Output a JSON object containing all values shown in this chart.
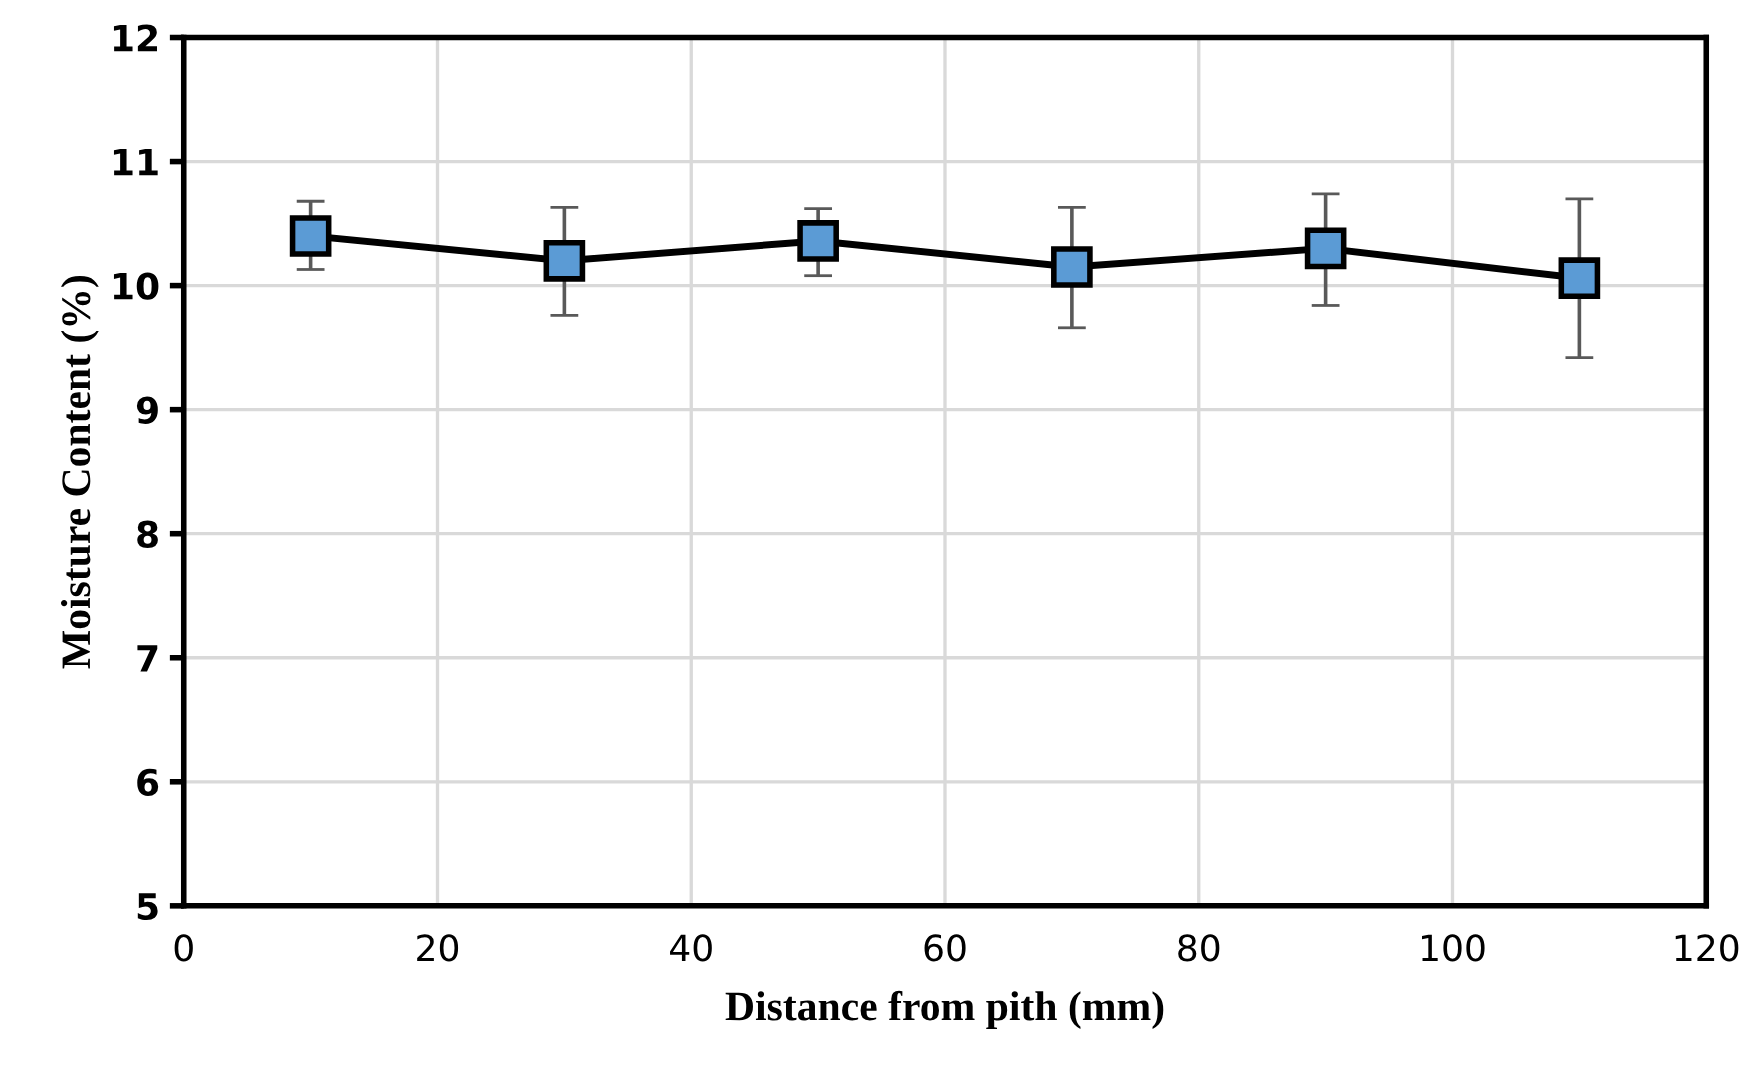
{
  "chart_data": {
    "type": "line",
    "xlabel": "Distance from pith (mm)",
    "ylabel": "Moisture Content (%)",
    "x": [
      10,
      30,
      50,
      70,
      90,
      110
    ],
    "series": [
      {
        "color": "#5b9bd5",
        "values": [
          10.4,
          10.2,
          10.36,
          10.15,
          10.3,
          10.06
        ],
        "errors": [
          [
            10.13,
            10.68
          ],
          [
            9.76,
            10.63
          ],
          [
            10.08,
            10.62
          ],
          [
            9.66,
            10.63
          ],
          [
            9.84,
            10.74
          ],
          [
            9.42,
            10.7
          ]
        ]
      }
    ],
    "xlim": [
      0,
      120
    ],
    "xticks": [
      0,
      20,
      40,
      60,
      80,
      100,
      120
    ],
    "ylim": [
      5,
      12
    ],
    "yticks": [
      5,
      6,
      7,
      8,
      9,
      10,
      11,
      12
    ],
    "grid": true,
    "marker": "square",
    "line_style": "solid"
  }
}
